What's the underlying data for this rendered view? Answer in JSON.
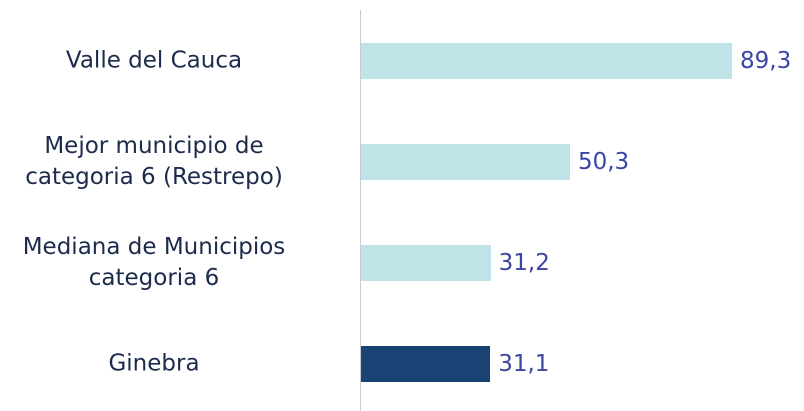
{
  "chart_data": {
    "type": "bar",
    "orientation": "horizontal",
    "categories": [
      "Valle del Cauca",
      "Mejor municipio de\ncategoria 6 (Restrepo)",
      "Mediana de Municipios\ncategoria 6",
      "Ginebra"
    ],
    "values": [
      89.3,
      50.3,
      31.2,
      31.1
    ],
    "value_labels": [
      "89,3",
      "50,3",
      "31,2",
      "31,1"
    ],
    "colors": [
      "#bfe3e6",
      "#bfe3e6",
      "#bfe3e6",
      "#1b4275"
    ]
  }
}
